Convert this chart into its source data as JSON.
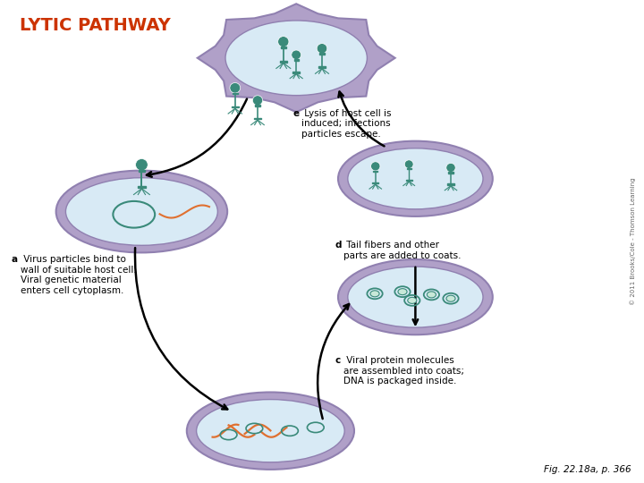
{
  "title": "LYTIC PATHWAY",
  "title_color": "#cc3300",
  "title_fontsize": 14,
  "bg_color": "#ffffff",
  "cell_outer_color": "#b0a0c8",
  "cell_inner_color": "#d8eaf5",
  "cell_border_color": "#9080b0",
  "phage_color": "#3a8a7a",
  "dna_color": "#e07030",
  "arrow_color": "#1a1a1a",
  "fig_caption": "Fig. 22.18a, p. 366",
  "copyright_text": "© 2011 Brooks/Cole - Thomson Learning"
}
